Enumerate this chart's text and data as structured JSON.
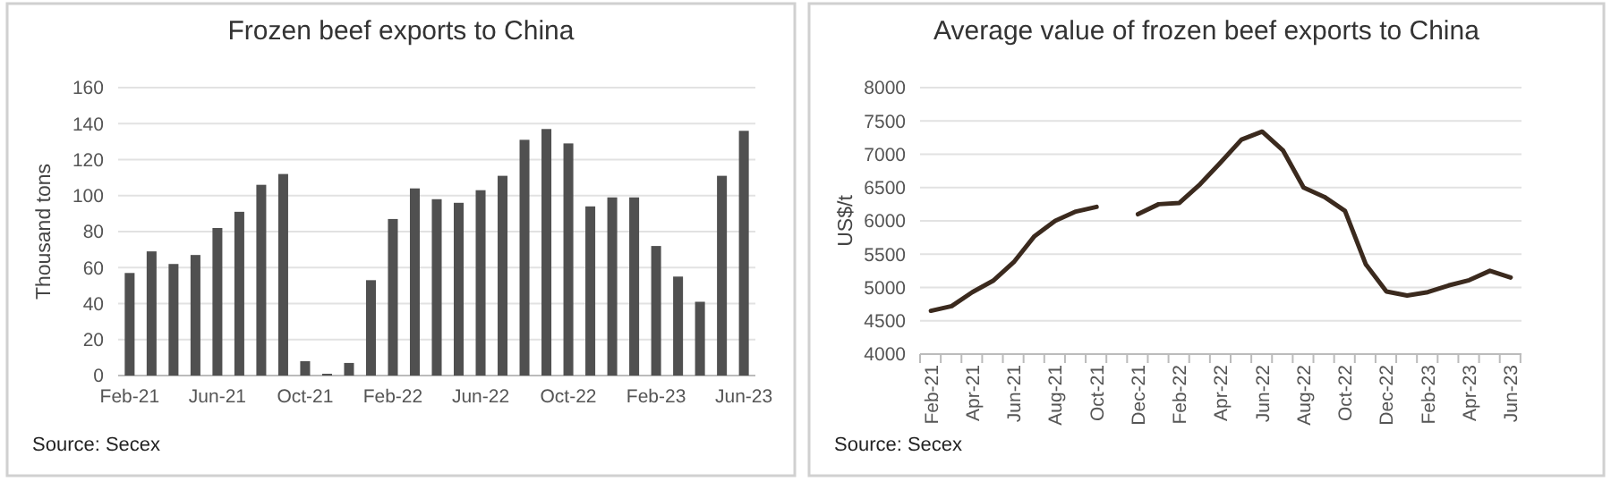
{
  "chart_data": [
    {
      "type": "bar",
      "title": "Frozen beef exports to China",
      "ylabel": "Thousand tons",
      "categories": [
        "Feb-21",
        null,
        null,
        null,
        "Jun-21",
        null,
        null,
        null,
        "Oct-21",
        null,
        null,
        null,
        "Feb-22",
        null,
        null,
        null,
        "Jun-22",
        null,
        null,
        null,
        "Oct-22",
        null,
        null,
        null,
        "Feb-23",
        null,
        null,
        null,
        "Jun-23"
      ],
      "values": [
        57,
        69,
        62,
        67,
        82,
        91,
        106,
        112,
        8,
        1,
        7,
        53,
        87,
        104,
        98,
        96,
        103,
        111,
        131,
        137,
        129,
        94,
        99,
        99,
        72,
        55,
        41,
        111,
        136
      ],
      "color": "#505050",
      "ylim": [
        0,
        160
      ],
      "yticks": [
        0,
        20,
        40,
        60,
        80,
        100,
        120,
        140,
        160
      ],
      "grid": "y",
      "annotations": [
        "Source: Secex"
      ]
    },
    {
      "type": "line",
      "title": "Average value of frozen beef exports to China",
      "ylabel": "US$/t",
      "categories": [
        "Feb-21",
        null,
        "Apr-21",
        null,
        "Jun-21",
        null,
        "Aug-21",
        null,
        "Oct-21",
        null,
        "Dec-21",
        null,
        "Feb-22",
        null,
        "Apr-22",
        null,
        "Jun-22",
        null,
        "Aug-22",
        null,
        "Oct-22",
        null,
        "Dec-22",
        null,
        "Feb-23",
        null,
        "Apr-23",
        null,
        "Jun-23"
      ],
      "values": [
        4650,
        4720,
        4930,
        5100,
        5380,
        5770,
        6000,
        6140,
        6210,
        null,
        6100,
        6250,
        6270,
        6550,
        6880,
        7220,
        7340,
        7060,
        6500,
        6360,
        6150,
        5350,
        4940,
        4880,
        4930,
        5030,
        5110,
        5250,
        5150
      ],
      "color": "#3b2a1e",
      "ylim": [
        4000,
        8000
      ],
      "yticks": [
        4000,
        4500,
        5000,
        5500,
        6000,
        6500,
        7000,
        7500,
        8000
      ],
      "grid": "y",
      "annotations": [
        "Source: Secex"
      ]
    }
  ]
}
